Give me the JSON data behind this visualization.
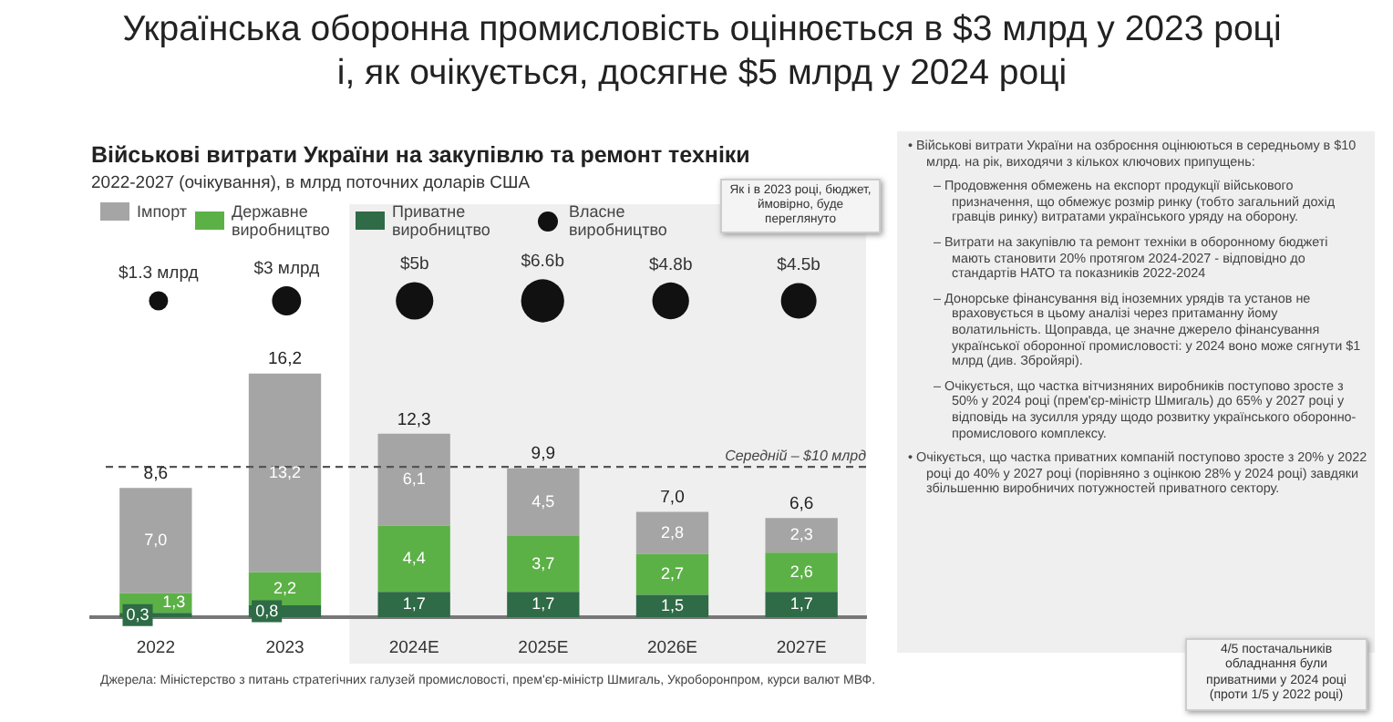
{
  "chart_data": [
    {
      "type": "bar",
      "title": "Військові витрати України на закупівлю та ремонт техніки",
      "subtitle": "2022-2027 (очікування), в млрд поточних доларів США",
      "categories": [
        "2022",
        "2023",
        "2024E",
        "2025E",
        "2026E",
        "2027E"
      ],
      "stacked": true,
      "series": [
        {
          "name": "Приватне виробництво",
          "color": "#2e6b46",
          "values": [
            0.3,
            0.8,
            1.7,
            1.7,
            1.5,
            1.7
          ],
          "value_labels": [
            "0,3",
            "0,8",
            "1,7",
            "1,7",
            "1,5",
            "1,7"
          ]
        },
        {
          "name": "Державне виробництво",
          "color": "#5cb146",
          "values": [
            1.3,
            2.2,
            4.4,
            3.7,
            2.7,
            2.6
          ],
          "value_labels": [
            "1,3",
            "2,2",
            "4,4",
            "3,7",
            "2,7",
            "2,6"
          ]
        },
        {
          "name": "Імпорт",
          "color": "#a5a5a5",
          "values": [
            7.0,
            13.2,
            6.1,
            4.5,
            2.8,
            2.3
          ],
          "value_labels": [
            "7,0",
            "13,2",
            "6,1",
            "4,5",
            "2,8",
            "2,3"
          ]
        }
      ],
      "totals": [
        "8,6",
        "16,2",
        "12,3",
        "9,9",
        "7,0",
        "6,6"
      ],
      "tick_labels": "x",
      "legend": "top",
      "ref_lines": [
        {
          "axis": "y",
          "value": 10,
          "label": "Середній – $10 млрд",
          "color": "#555555",
          "line_style": "dashed"
        }
      ],
      "bands": [
        {
          "axis": "x",
          "from": "2024E",
          "to": "2027E",
          "color": "#efefef"
        }
      ],
      "annotations": [
        "Українська оборонна промисловість оцінюється в $3 млрд у 2023 році і, як очікується, досягне $5 млрд у 2024 році",
        "• Військові витрати України на озброєння оцінюються в середньому в $10 млрд. на рік, виходячи з кількох ключових припущень:",
        "– Продовження обмежень на експорт продукції військового призначення, що обмежує розмір ринку (тобто загальний дохід гравців ринку) витратами українського уряду на оборону.",
        "– Витрати на закупівлю та ремонт техніки в оборонному бюджеті мають становити 20% протягом 2024-2027 - відповідно до стандартів НАТО та показників 2022-2024",
        "– Донорське фінансування від іноземних урядів та установ не враховується в цьому аналізі через притаманну йому волатильність. Щоправда, це значне джерело фінансування української оборонної промисловості: у 2024 воно може сягнути $1 млрд (див. Збройярі).",
        "– Очікується, що частка вітчизняних виробників поступово зросте з 50% у 2024 році (прем'єр-міністр Шмигаль) до 65% у 2027 році у відповідь на зусилля уряду щодо розвитку українського оборонно-промислового комплексу.",
        "• Очікується, що частка приватних компаній поступово зросте з 20% у 2022 році до 40% у 2027 році (порівняно з оцінкою 28% у 2024 році) завдяки збільшенню виробничих потужностей приватного сектору.",
        "4/5 постачальників обладнання були приватними у 2024 році (проти 1/5 у 2022 році)",
        "Джерела: Міністерство з питань стратегічних галузей промисловості, прем'єр-міністр Шмигаль, Укроборонпром, курси валют МВФ."
      ]
    },
    {
      "type": "other",
      "categories": [
        null,
        null,
        null,
        null,
        null,
        null
      ],
      "series": [
        {
          "name": "Власне виробництво",
          "color": "#111111",
          "values": [
            1.3,
            3,
            5,
            6.6,
            4.8,
            4.5
          ],
          "value_labels": [
            "$1.3 млрд",
            "$3 млрд",
            "$5b",
            "$6.6b",
            "$4.8b",
            "$4.5b"
          ]
        }
      ],
      "annotations": [
        "Як і в 2023 році, бюджет, ймовірно, буде переглянуто"
      ]
    }
  ]
}
